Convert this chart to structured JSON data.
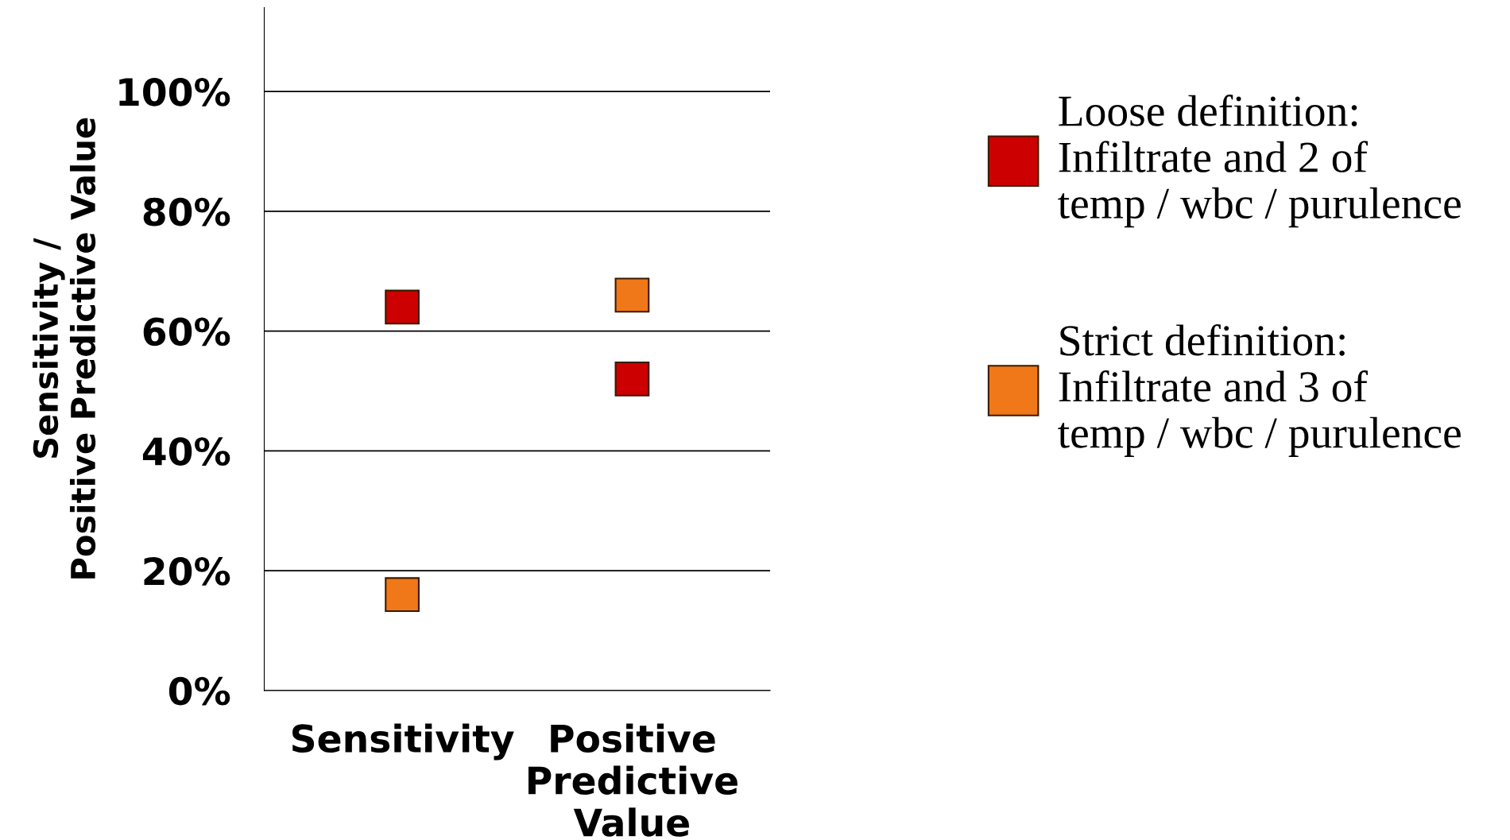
{
  "chart_data": {
    "type": "scatter",
    "ylabel": "Sensitivity /\nPositive Predictive Value",
    "categories": [
      "Sensitivity",
      "Positive\nPredictive\nValue"
    ],
    "series": [
      {
        "name": "Loose definition:\nInfiltrate and 2 of\ntemp / wbc / purulence",
        "color": "#cc0000",
        "values": [
          64,
          52
        ]
      },
      {
        "name": "Strict definition:\nInfiltrate and 3 of\ntemp / wbc / purulence",
        "color": "#f07818",
        "values": [
          16,
          66
        ]
      }
    ],
    "ylim": [
      0,
      114
    ],
    "yticks": [
      {
        "value": 0,
        "label": "0%"
      },
      {
        "value": 20,
        "label": "20%"
      },
      {
        "value": 40,
        "label": "40%"
      },
      {
        "value": 60,
        "label": "60%"
      },
      {
        "value": 80,
        "label": "80%"
      },
      {
        "value": 100,
        "label": "100%"
      }
    ],
    "grid": "y",
    "legend": "right",
    "marker": "square"
  }
}
